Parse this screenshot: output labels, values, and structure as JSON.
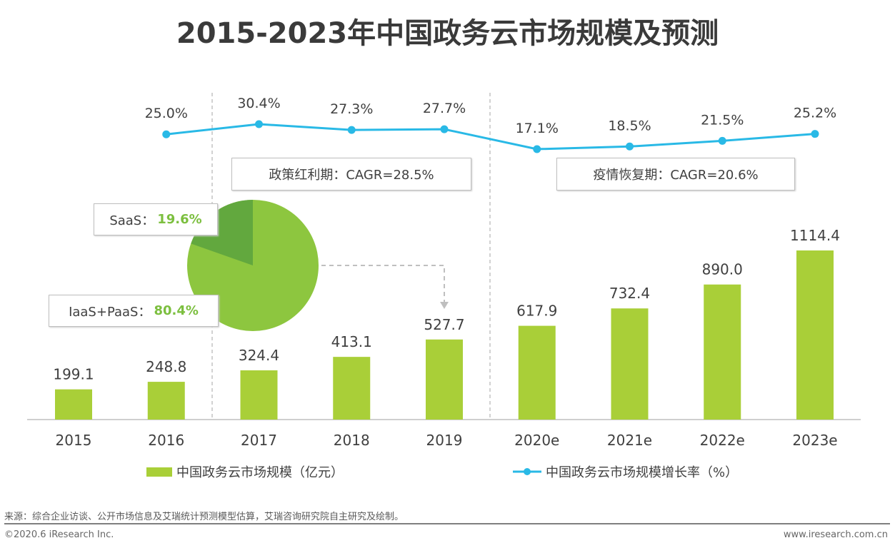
{
  "chart_data": {
    "type": "bar+line",
    "title": "2015-2023年中国政务云市场规模及预测",
    "categories": [
      "2015",
      "2016",
      "2017",
      "2018",
      "2019",
      "2020e",
      "2021e",
      "2022e",
      "2023e"
    ],
    "series": [
      {
        "name": "中国政务云市场规模（亿元）",
        "type": "bar",
        "color": "#A9CF38",
        "values": [
          199.1,
          248.8,
          324.4,
          413.1,
          527.7,
          617.9,
          732.4,
          890.0,
          1114.4
        ],
        "labels": [
          "199.1",
          "248.8",
          "324.4",
          "413.1",
          "527.7",
          "617.9",
          "732.4",
          "890.0",
          "1114.4"
        ]
      },
      {
        "name": "中国政务云市场规模增长率（%）",
        "type": "line",
        "color": "#29B9E6",
        "values": [
          25.0,
          30.4,
          27.3,
          27.7,
          17.1,
          18.5,
          21.5,
          25.2
        ],
        "x": [
          "2016",
          "2017",
          "2018",
          "2019",
          "2020e",
          "2021e",
          "2022e",
          "2023e"
        ],
        "labels": [
          "25.0%",
          "30.4%",
          "27.3%",
          "27.7%",
          "17.1%",
          "18.5%",
          "21.5%",
          "25.2%"
        ]
      }
    ],
    "annotations": {
      "period1": "政策红利期：CAGR=28.5%",
      "period2": "疫情恢复期：CAGR=20.6%"
    },
    "pie": {
      "slices": [
        {
          "name": "SaaS",
          "label": "SaaS：",
          "value_label": "19.6%",
          "value": 19.6,
          "color": "#62A83E"
        },
        {
          "name": "IaaS+PaaS",
          "label": "IaaS+PaaS：",
          "value_label": "80.4%",
          "value": 80.4,
          "color": "#8DC63F"
        }
      ]
    }
  },
  "footer": {
    "source": "来源：综合企业访谈、公开市场信息及艾瑞统计预测模型估算，艾瑞咨询研究院自主研究及绘制。",
    "copyright": "©2020.6 iResearch Inc.",
    "site": "www.iresearch.com.cn"
  }
}
